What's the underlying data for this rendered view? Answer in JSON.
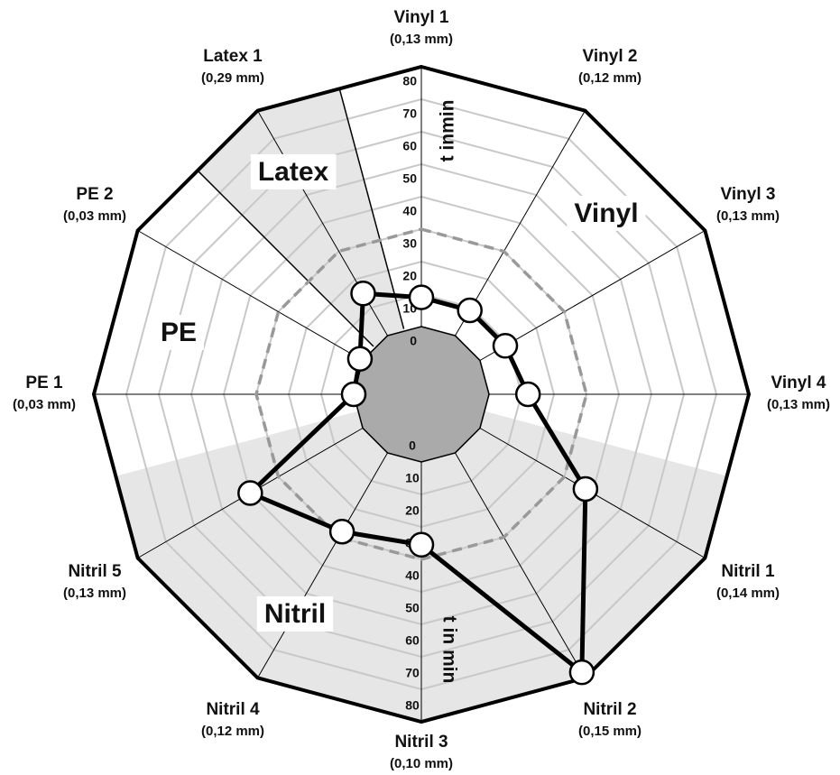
{
  "chart_data": {
    "type": "radar",
    "categories": [
      "Vinyl 1",
      "Vinyl 2",
      "Vinyl 3",
      "Vinyl 4",
      "Nitril 1",
      "Nitril 2",
      "Nitril 3",
      "Nitril 4",
      "Nitril 5",
      "PE 1",
      "PE 2",
      "Latex 1"
    ],
    "category_notes": [
      "(0,13 mm)",
      "(0,12 mm)",
      "(0,13 mm)",
      "(0,13 mm)",
      "(0,14 mm)",
      "(0,15 mm)",
      "(0,10 mm)",
      "(0,12 mm)",
      "(0,13 mm)",
      "(0,03 mm)",
      "(0,03 mm)",
      "(0,29 mm)"
    ],
    "series": [
      {
        "color": "#000000",
        "values": [
          9,
          9,
          9,
          12,
          37.5,
          78,
          25.5,
          28,
          40,
          0,
          1,
          15
        ]
      }
    ],
    "groups": [
      "Latex",
      "Vinyl",
      "PE",
      "Nitril"
    ],
    "axis_labels": [
      "t inmin",
      "t in min"
    ],
    "reference_line": {
      "value": 30,
      "color": "#999999"
    },
    "ylim": [
      0,
      80
    ],
    "yticks": [
      0,
      10,
      20,
      30,
      40,
      50,
      60,
      70,
      80
    ],
    "grid": true
  }
}
